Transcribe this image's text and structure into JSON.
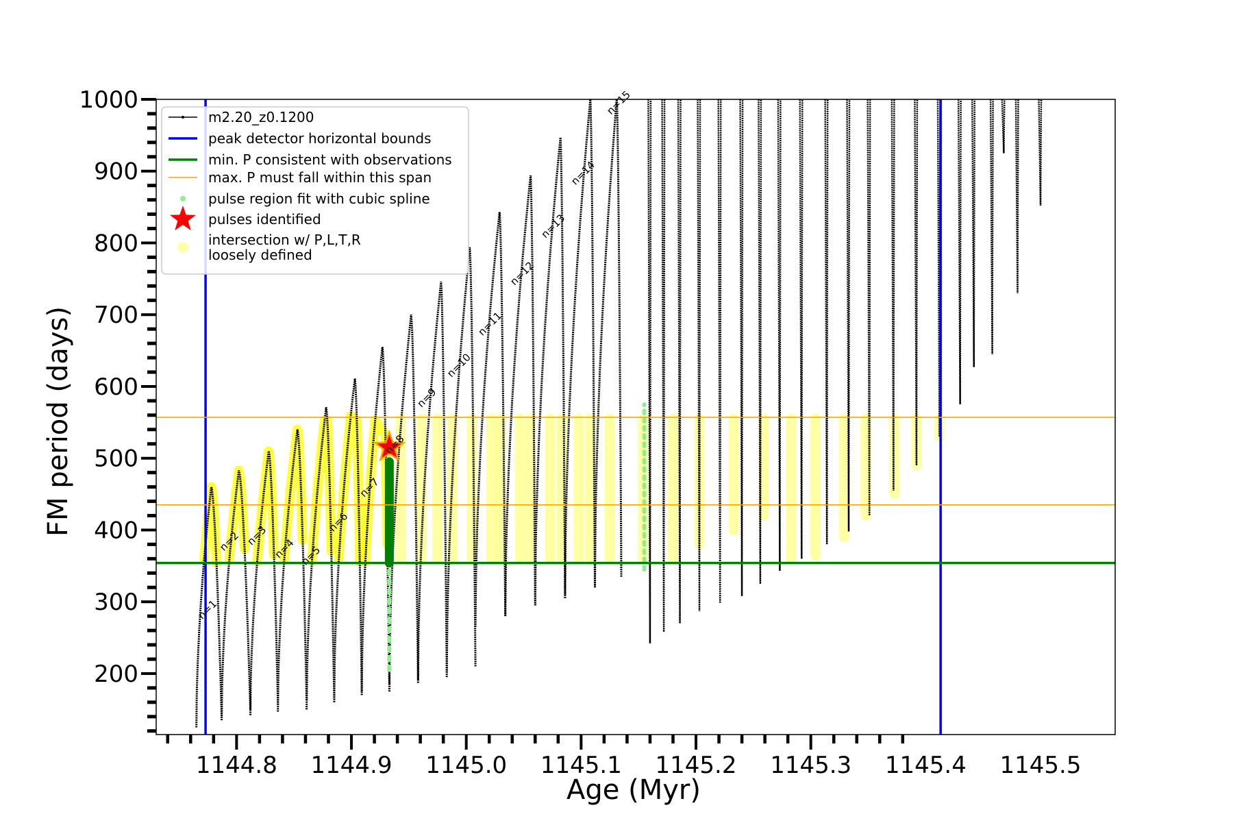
{
  "chart_data": {
    "type": "line",
    "xlabel": "Age (Myr)",
    "ylabel": "FM period (days)",
    "xlim": [
      1144.73,
      1145.565
    ],
    "ylim": [
      115,
      1000
    ],
    "x_ticks": [
      1144.8,
      1144.9,
      1145.0,
      1145.1,
      1145.2,
      1145.3,
      1145.4,
      1145.5
    ],
    "x_tick_labels": [
      "1144.8",
      "1144.9",
      "1145.0",
      "1145.1",
      "1145.2",
      "1145.3",
      "1145.4",
      "1145.5"
    ],
    "y_ticks": [
      200,
      300,
      400,
      500,
      600,
      700,
      800,
      900,
      1000
    ],
    "y_tick_labels": [
      "200",
      "300",
      "400",
      "500",
      "600",
      "700",
      "800",
      "900",
      "1000"
    ],
    "grid": false,
    "legend_placement": "upper-left",
    "legend": [
      {
        "label": "m2.20_z0.1200",
        "style": "line-marker",
        "color": "#000000"
      },
      {
        "label": "peak detector horizontal bounds",
        "style": "line",
        "color": "#0000ff"
      },
      {
        "label": "min. P consistent with observations",
        "style": "line",
        "color": "#008000"
      },
      {
        "label": "max. P must fall within this span",
        "style": "thin-line",
        "color": "#ffa500"
      },
      {
        "label": "pulse region fit with cubic spline",
        "style": "dot",
        "color": "#90ee90"
      },
      {
        "label": "pulses identified",
        "style": "star",
        "color": "#ff0000"
      },
      {
        "label": "intersection w/ P,L,T,R",
        "label_line2": "loosely defined",
        "style": "big-dot",
        "color": "#ffffaa"
      }
    ],
    "series_name": "m2.20_z0.1200",
    "cycles": [
      {
        "start": 1144.765,
        "peak": 1144.778,
        "end": 1144.787,
        "min": 125,
        "peak_value": 460
      },
      {
        "start": 1144.787,
        "peak": 1144.802,
        "end": 1144.812,
        "min": 135,
        "peak_value": 483
      },
      {
        "start": 1144.812,
        "peak": 1144.828,
        "end": 1144.836,
        "min": 142,
        "peak_value": 510
      },
      {
        "start": 1144.836,
        "peak": 1144.853,
        "end": 1144.861,
        "min": 147,
        "peak_value": 540
      },
      {
        "start": 1144.861,
        "peak": 1144.878,
        "end": 1144.885,
        "min": 150,
        "peak_value": 571
      },
      {
        "start": 1144.885,
        "peak": 1144.903,
        "end": 1144.909,
        "min": 160,
        "peak_value": 611
      },
      {
        "start": 1144.909,
        "peak": 1144.927,
        "end": 1144.933,
        "min": 170,
        "peak_value": 655
      },
      {
        "start": 1144.933,
        "peak": 1144.952,
        "end": 1144.958,
        "min": 175,
        "peak_value": 700
      },
      {
        "start": 1144.958,
        "peak": 1144.978,
        "end": 1144.983,
        "min": 187,
        "peak_value": 746
      },
      {
        "start": 1144.983,
        "peak": 1145.003,
        "end": 1145.008,
        "min": 195,
        "peak_value": 794
      },
      {
        "start": 1145.008,
        "peak": 1145.029,
        "end": 1145.034,
        "min": 265,
        "peak_value": 843
      },
      {
        "start": 1145.034,
        "peak": 1145.056,
        "end": 1145.06,
        "min": 280,
        "peak_value": 894
      },
      {
        "start": 1145.06,
        "peak": 1145.082,
        "end": 1145.086,
        "min": 295,
        "peak_value": 947
      },
      {
        "start": 1145.086,
        "peak": 1145.108,
        "end": 1145.112,
        "min": 305,
        "peak_value": 1000
      },
      {
        "start": 1145.112,
        "peak": 1145.131,
        "end": 1145.135,
        "min": 320,
        "peak_value": 1000
      }
    ],
    "spikes": [
      {
        "x": 1145.16,
        "min": 242
      },
      {
        "x": 1145.172,
        "min": 258
      },
      {
        "x": 1145.186,
        "min": 270
      },
      {
        "x": 1145.203,
        "min": 287
      },
      {
        "x": 1145.221,
        "min": 298
      },
      {
        "x": 1145.24,
        "min": 308
      },
      {
        "x": 1145.256,
        "min": 325
      },
      {
        "x": 1145.273,
        "min": 343
      },
      {
        "x": 1145.292,
        "min": 360
      },
      {
        "x": 1145.314,
        "min": 380
      },
      {
        "x": 1145.333,
        "min": 398
      },
      {
        "x": 1145.351,
        "min": 420
      },
      {
        "x": 1145.372,
        "min": 455
      },
      {
        "x": 1145.392,
        "min": 490
      },
      {
        "x": 1145.412,
        "min": 530
      },
      {
        "x": 1145.43,
        "min": 575
      },
      {
        "x": 1145.442,
        "min": 627
      },
      {
        "x": 1145.458,
        "min": 645
      },
      {
        "x": 1145.468,
        "min": 925
      },
      {
        "x": 1145.48,
        "min": 730
      },
      {
        "x": 1145.5,
        "min": 852
      }
    ],
    "pulse_labels": [
      "n=1",
      "n=2",
      "n=3",
      "n=4",
      "n=5",
      "n=6",
      "n=7",
      "n=8",
      "n=9",
      "n=10",
      "n=11",
      "n=12",
      "n=13",
      "n=14",
      "n=15"
    ],
    "pulse_label_positions": [
      {
        "x": 1144.77,
        "y": 275
      },
      {
        "x": 1144.789,
        "y": 370
      },
      {
        "x": 1144.813,
        "y": 378
      },
      {
        "x": 1144.837,
        "y": 360
      },
      {
        "x": 1144.86,
        "y": 350
      },
      {
        "x": 1144.884,
        "y": 397
      },
      {
        "x": 1144.911,
        "y": 445
      },
      {
        "x": 1144.933,
        "y": 505
      },
      {
        "x": 1144.961,
        "y": 570
      },
      {
        "x": 1144.987,
        "y": 612
      },
      {
        "x": 1145.014,
        "y": 670
      },
      {
        "x": 1145.042,
        "y": 740
      },
      {
        "x": 1145.069,
        "y": 806
      },
      {
        "x": 1145.095,
        "y": 880
      },
      {
        "x": 1145.126,
        "y": 978
      }
    ],
    "peak_detector_bounds_x": [
      1144.773,
      1145.413
    ],
    "min_period_consistent": 354,
    "max_period_span": [
      435,
      557
    ],
    "spline_region": {
      "x": 1144.933,
      "y_range": [
        205,
        500
      ]
    },
    "spline_region_2": {
      "x": 1145.155,
      "y_range": [
        345,
        575
      ]
    },
    "pulse_identified": {
      "x": 1144.933,
      "y": 515
    },
    "highlight_segments": [
      {
        "x": 1144.943,
        "y_range": [
          360,
          555
        ]
      },
      {
        "x": 1144.961,
        "y_range": [
          360,
          555
        ]
      },
      {
        "x": 1144.975,
        "y_range": [
          360,
          555
        ]
      },
      {
        "x": 1144.988,
        "y_range": [
          360,
          555
        ]
      },
      {
        "x": 1145.005,
        "y_range": [
          360,
          555
        ]
      },
      {
        "x": 1145.022,
        "y_range": [
          360,
          555
        ]
      },
      {
        "x": 1145.03,
        "y_range": [
          360,
          555
        ]
      },
      {
        "x": 1145.047,
        "y_range": [
          360,
          555
        ]
      },
      {
        "x": 1145.056,
        "y_range": [
          360,
          555
        ]
      },
      {
        "x": 1145.073,
        "y_range": [
          360,
          555
        ]
      },
      {
        "x": 1145.083,
        "y_range": [
          360,
          555
        ]
      },
      {
        "x": 1145.098,
        "y_range": [
          360,
          555
        ]
      },
      {
        "x": 1145.108,
        "y_range": [
          360,
          555
        ]
      },
      {
        "x": 1145.125,
        "y_range": [
          360,
          555
        ]
      },
      {
        "x": 1145.154,
        "y_range": [
          360,
          555
        ]
      },
      {
        "x": 1145.18,
        "y_range": [
          360,
          555
        ]
      },
      {
        "x": 1145.203,
        "y_range": [
          380,
          555
        ]
      },
      {
        "x": 1145.233,
        "y_range": [
          400,
          555
        ]
      },
      {
        "x": 1145.259,
        "y_range": [
          420,
          555
        ]
      },
      {
        "x": 1145.283,
        "y_range": [
          360,
          555
        ]
      },
      {
        "x": 1145.304,
        "y_range": [
          365,
          555
        ]
      },
      {
        "x": 1145.329,
        "y_range": [
          390,
          555
        ]
      },
      {
        "x": 1145.348,
        "y_range": [
          420,
          555
        ]
      },
      {
        "x": 1145.373,
        "y_range": [
          450,
          555
        ]
      },
      {
        "x": 1145.392,
        "y_range": [
          490,
          555
        ]
      },
      {
        "x": 1145.412,
        "y_range": [
          530,
          555
        ]
      }
    ]
  }
}
